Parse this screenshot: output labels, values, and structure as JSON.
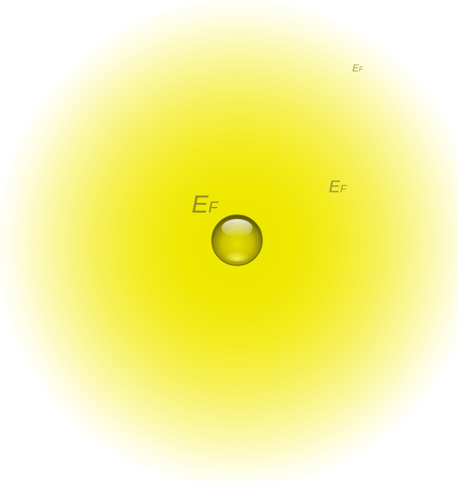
{
  "labels": [
    {
      "main": "E",
      "sub": "F"
    },
    {
      "main": "E",
      "sub": "F"
    },
    {
      "main": "E",
      "sub": "F"
    }
  ],
  "colors": {
    "glow_center": "#ede600",
    "particle": "#c8c000",
    "label_text": "#9a9a2c"
  }
}
